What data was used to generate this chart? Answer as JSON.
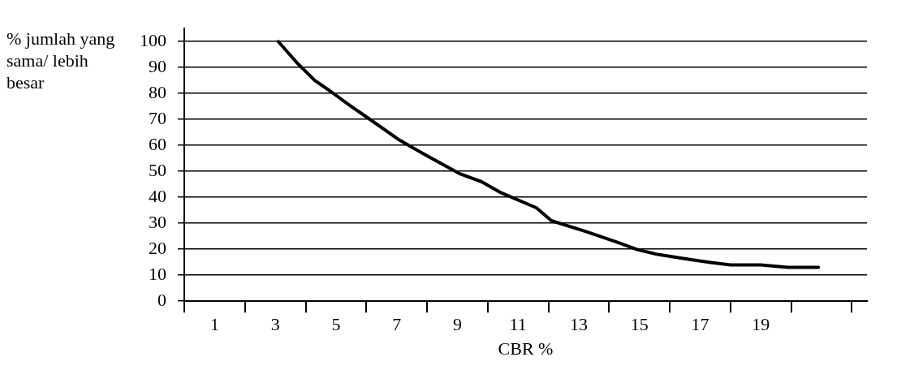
{
  "chart_data": {
    "type": "line",
    "xlabel": "CBR %",
    "ylabel": "% jumlah yang sama/ lebih besar",
    "series": [
      {
        "color": "#000000",
        "x": [
          3.1,
          3.7,
          4.3,
          4.8,
          5.5,
          6.0,
          7.1,
          8.0,
          9.1,
          9.8,
          10.4,
          11.6,
          12.1,
          13.2,
          14.2,
          14.9,
          15.6,
          16.7,
          17.3,
          18.0,
          19.0,
          19.9,
          20.9
        ],
        "values": [
          100,
          92,
          85,
          81,
          75,
          71,
          62,
          56,
          49,
          46,
          42,
          36,
          31,
          27,
          23,
          20,
          18,
          16,
          15,
          14,
          14,
          13,
          13
        ]
      }
    ],
    "xlim": [
      0,
      22.5
    ],
    "xticks": [
      {
        "value": 0,
        "label": null
      },
      1,
      {
        "value": 2,
        "label": null
      },
      3,
      {
        "value": 4,
        "label": null
      },
      5,
      {
        "value": 6,
        "label": null
      },
      7,
      {
        "value": 8,
        "label": null
      },
      9,
      {
        "value": 10,
        "label": null
      },
      11,
      {
        "value": 12,
        "label": null
      },
      13,
      {
        "value": 14,
        "label": null
      },
      15,
      {
        "value": 16,
        "label": null
      },
      17,
      {
        "value": 18,
        "label": null
      },
      19,
      {
        "value": 20,
        "label": null
      },
      {
        "value": 22,
        "label": null
      }
    ],
    "ylim": [
      0,
      105
    ],
    "yticks": [
      0,
      10,
      20,
      30,
      40,
      50,
      60,
      70,
      80,
      90,
      100
    ],
    "grid": "y",
    "legend": false,
    "marker": "none",
    "line_style": "solid"
  }
}
